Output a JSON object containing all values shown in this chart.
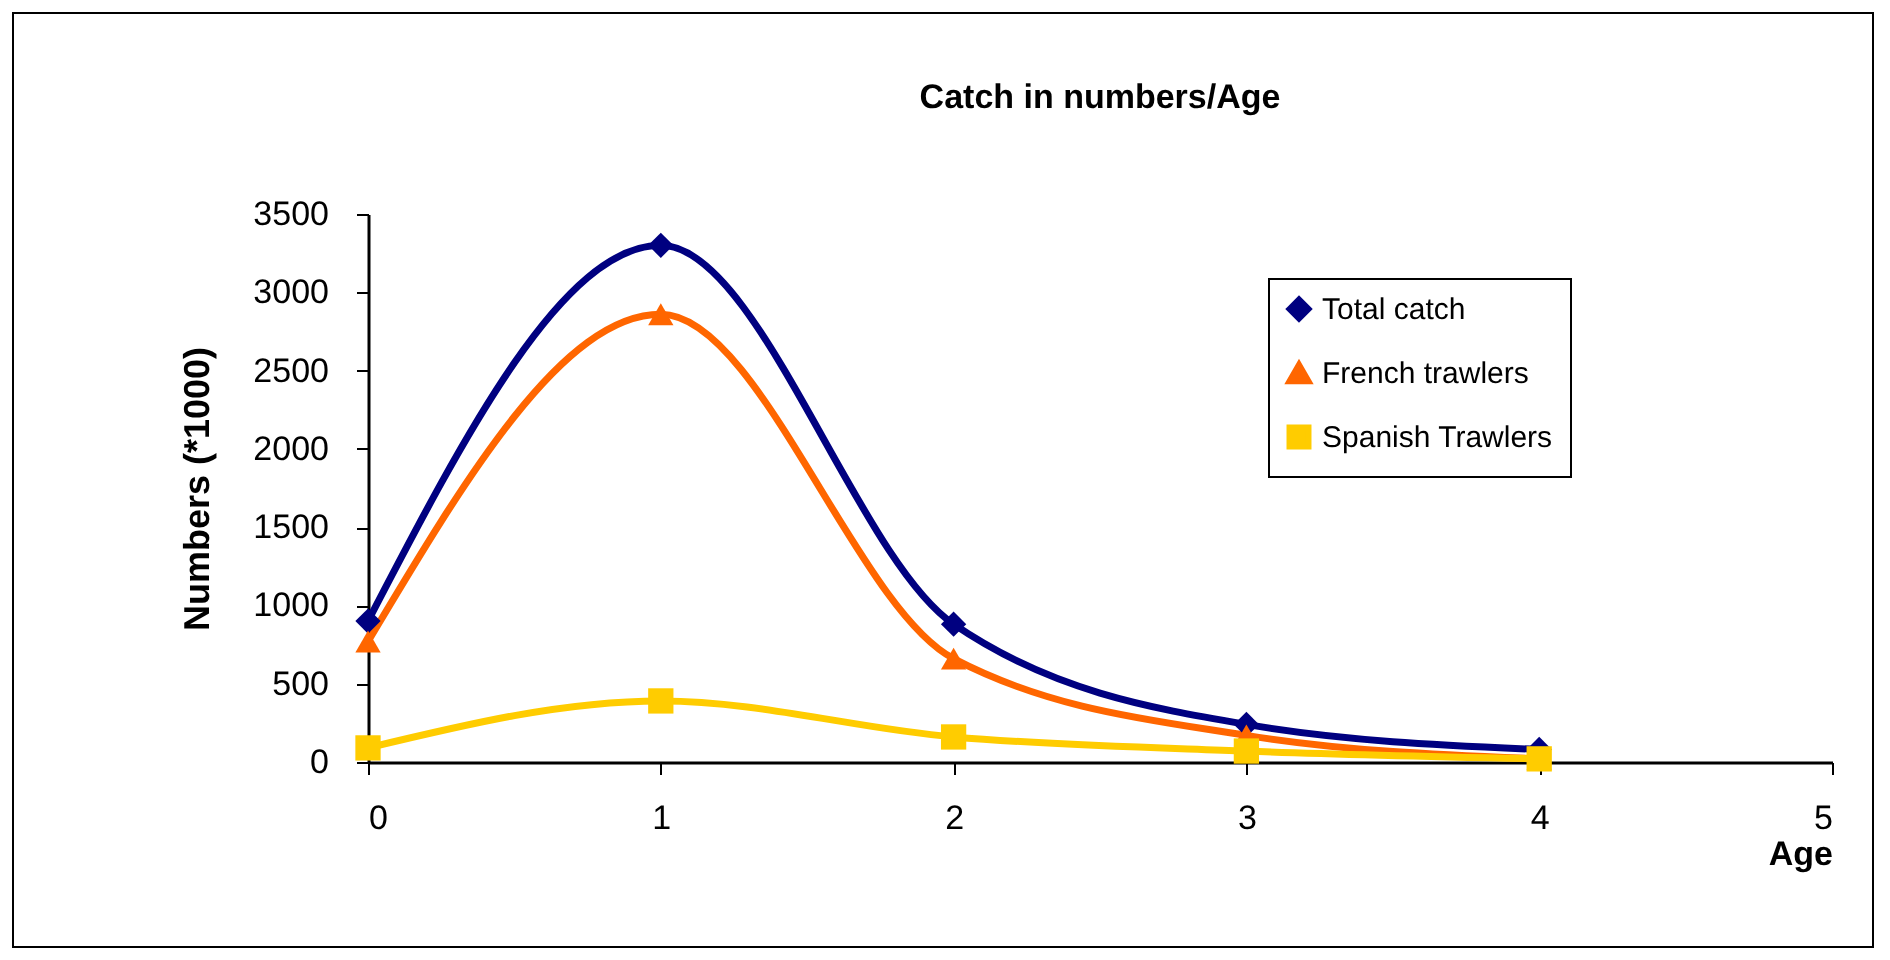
{
  "chart_data": {
    "type": "line",
    "title": "Catch in numbers/Age",
    "xlabel": "Age",
    "ylabel": "Numbers (*1000)",
    "x": [
      0,
      1,
      2,
      3,
      4
    ],
    "series": [
      {
        "name": "Total catch",
        "color": "#000080",
        "marker": "diamond",
        "values": [
          900,
          3300,
          880,
          240,
          80
        ]
      },
      {
        "name": "French trawlers",
        "color": "#ff6600",
        "marker": "triangle",
        "values": [
          770,
          2860,
          660,
          170,
          20
        ]
      },
      {
        "name": "Spanish Trawlers",
        "color": "#ffcc00",
        "marker": "square",
        "values": [
          90,
          390,
          160,
          70,
          20
        ]
      }
    ],
    "xlim": [
      0,
      5
    ],
    "xticks": [
      0,
      1,
      2,
      3,
      4,
      5
    ],
    "ylim": [
      0,
      3500
    ],
    "yticks": [
      0,
      500,
      1000,
      1500,
      2000,
      2500,
      3000,
      3500
    ],
    "grid": false,
    "legend": "top right",
    "line_style": "solid"
  }
}
